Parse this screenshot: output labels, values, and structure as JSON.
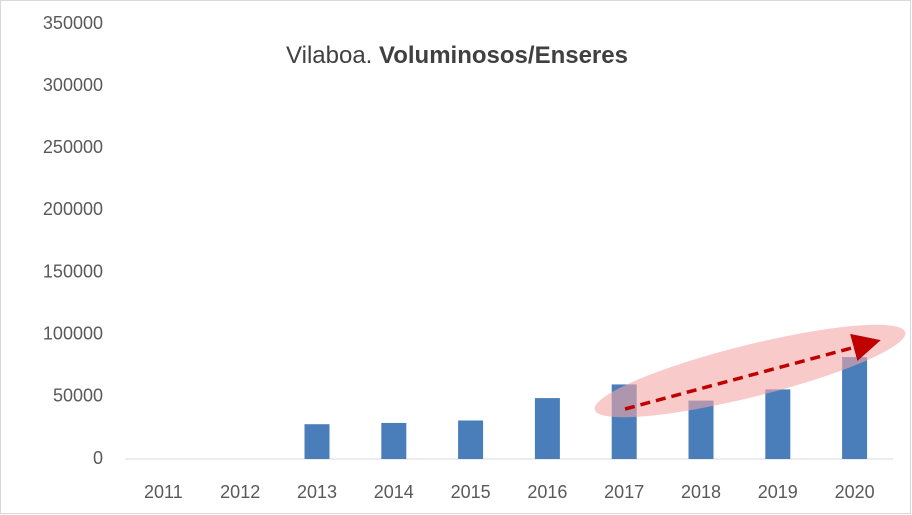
{
  "chart_data": {
    "type": "bar",
    "title": {
      "place": "Vilaboa.",
      "topic": "Voluminosos/Enseres"
    },
    "categories": [
      "2011",
      "2012",
      "2013",
      "2014",
      "2015",
      "2016",
      "2017",
      "2018",
      "2019",
      "2020"
    ],
    "values": [
      0,
      0,
      28000,
      29000,
      31000,
      49000,
      60000,
      47000,
      56000,
      82000
    ],
    "color": "#4a7ebb",
    "ylim": [
      0,
      350000
    ],
    "yticks": [
      0,
      50000,
      100000,
      150000,
      200000,
      250000,
      300000,
      350000
    ],
    "grid": false
  }
}
